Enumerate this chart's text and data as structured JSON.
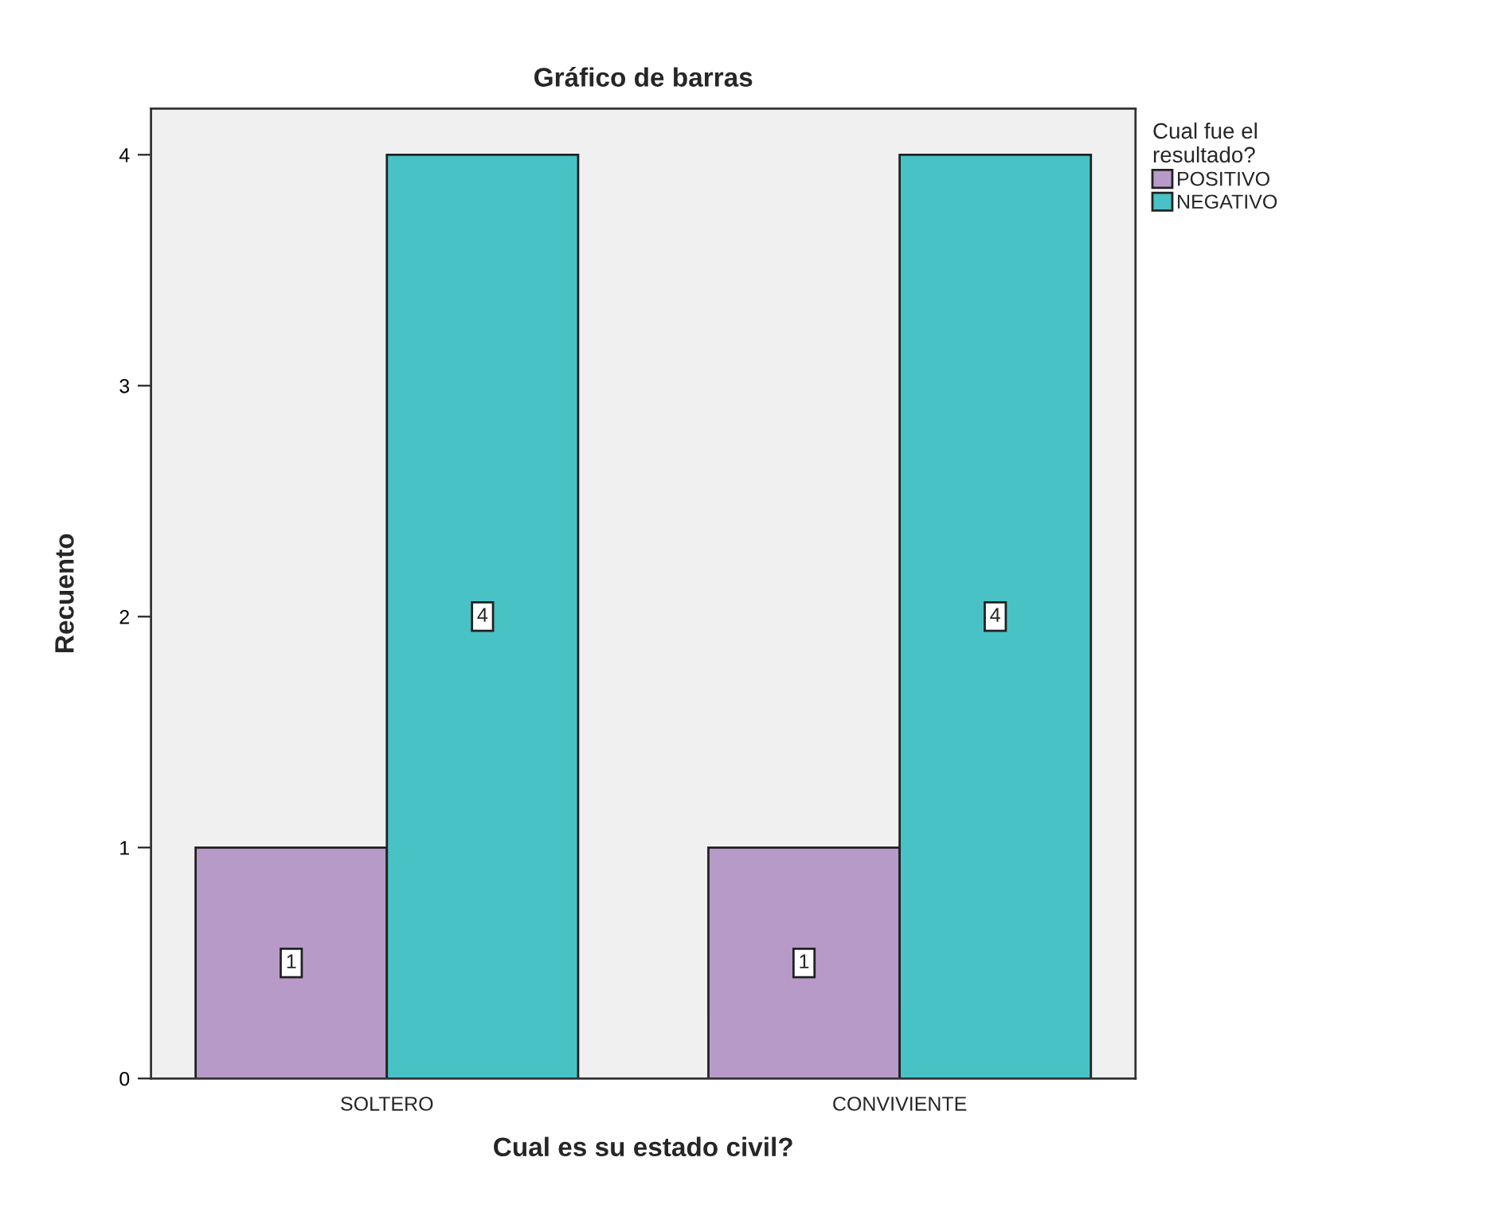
{
  "chart_data": {
    "type": "bar",
    "title": "Gráfico de barras",
    "xlabel": "Cual es su estado civil?",
    "ylabel": "Recuento",
    "categories": [
      "SOLTERO",
      "CONVIVIENTE"
    ],
    "series": [
      {
        "name": "POSITIVO",
        "color": "#b89ac8",
        "values": [
          1,
          1
        ]
      },
      {
        "name": "NEGATIVO",
        "color": "#48c2c5",
        "values": [
          4,
          4
        ]
      }
    ],
    "legend_title": "Cual fue el\nresultado?",
    "legend": "top right",
    "ylim": [
      0,
      4.2
    ],
    "yticks": [
      0,
      1,
      2,
      3,
      4
    ],
    "grid": false,
    "data_labels": true
  }
}
